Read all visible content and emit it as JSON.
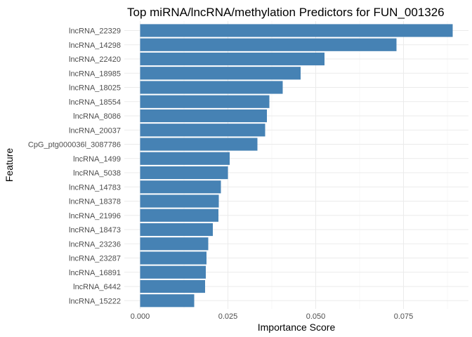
{
  "chart_data": {
    "type": "bar",
    "orientation": "horizontal",
    "title": "Top miRNA/lncRNA/methylation Predictors for FUN_001326",
    "xlabel": "Importance Score",
    "ylabel": "Feature",
    "bar_color": "#4682B4",
    "background": "#FFFFFF",
    "grid": true,
    "xlim": [
      -0.0045,
      0.0935
    ],
    "xticks": [
      0.0,
      0.025,
      0.05,
      0.075
    ],
    "xtick_labels": [
      "0.000",
      "0.025",
      "0.050",
      "0.075"
    ],
    "categories": [
      "lncRNA_22329",
      "lncRNA_14298",
      "lncRNA_22420",
      "lncRNA_18985",
      "lncRNA_18025",
      "lncRNA_18554",
      "lncRNA_8086",
      "lncRNA_20037",
      "CpG_ptg000036l_3087786",
      "lncRNA_1499",
      "lncRNA_5038",
      "lncRNA_14783",
      "lncRNA_18378",
      "lncRNA_21996",
      "lncRNA_18473",
      "lncRNA_23236",
      "lncRNA_23287",
      "lncRNA_16891",
      "lncRNA_6442",
      "lncRNA_15222"
    ],
    "values": [
      0.089,
      0.073,
      0.0525,
      0.0457,
      0.0406,
      0.0368,
      0.0361,
      0.0356,
      0.0334,
      0.0255,
      0.025,
      0.023,
      0.0224,
      0.0223,
      0.0207,
      0.0194,
      0.0189,
      0.0187,
      0.0185,
      0.0154
    ]
  }
}
